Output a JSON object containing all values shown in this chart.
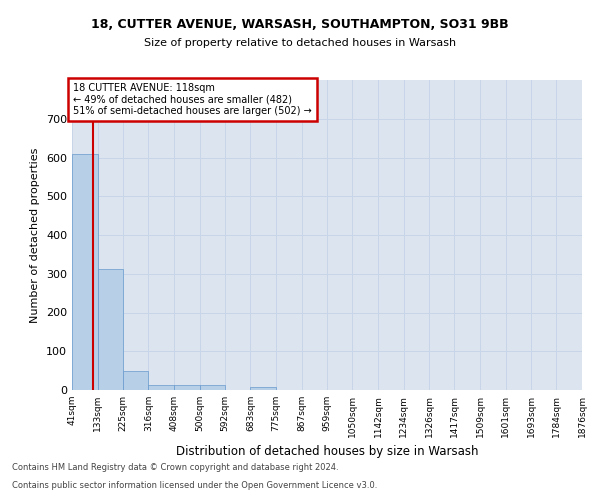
{
  "title1": "18, CUTTER AVENUE, WARSASH, SOUTHAMPTON, SO31 9BB",
  "title2": "Size of property relative to detached houses in Warsash",
  "xlabel": "Distribution of detached houses by size in Warsash",
  "ylabel": "Number of detached properties",
  "footnote1": "Contains HM Land Registry data © Crown copyright and database right 2024.",
  "footnote2": "Contains public sector information licensed under the Open Government Licence v3.0.",
  "annotation_line1": "18 CUTTER AVENUE: 118sqm",
  "annotation_line2": "← 49% of detached houses are smaller (482)",
  "annotation_line3": "51% of semi-detached houses are larger (502) →",
  "property_size": 118,
  "bin_edges": [
    41,
    133,
    225,
    316,
    408,
    500,
    592,
    683,
    775,
    867,
    959,
    1050,
    1142,
    1234,
    1326,
    1417,
    1509,
    1601,
    1693,
    1784,
    1876
  ],
  "bar_heights": [
    608,
    312,
    50,
    12,
    13,
    13,
    0,
    8,
    0,
    0,
    0,
    0,
    0,
    0,
    0,
    0,
    0,
    0,
    0,
    0
  ],
  "bar_color": "#b8cfe8",
  "bar_edge_color": "#6699cc",
  "grid_color": "#c8d4e8",
  "background_color": "#dce4f0",
  "red_line_color": "#cc0000",
  "annotation_box_color": "#cc0000",
  "ylim": [
    0,
    800
  ],
  "yticks": [
    0,
    100,
    200,
    300,
    400,
    500,
    600,
    700,
    800
  ]
}
